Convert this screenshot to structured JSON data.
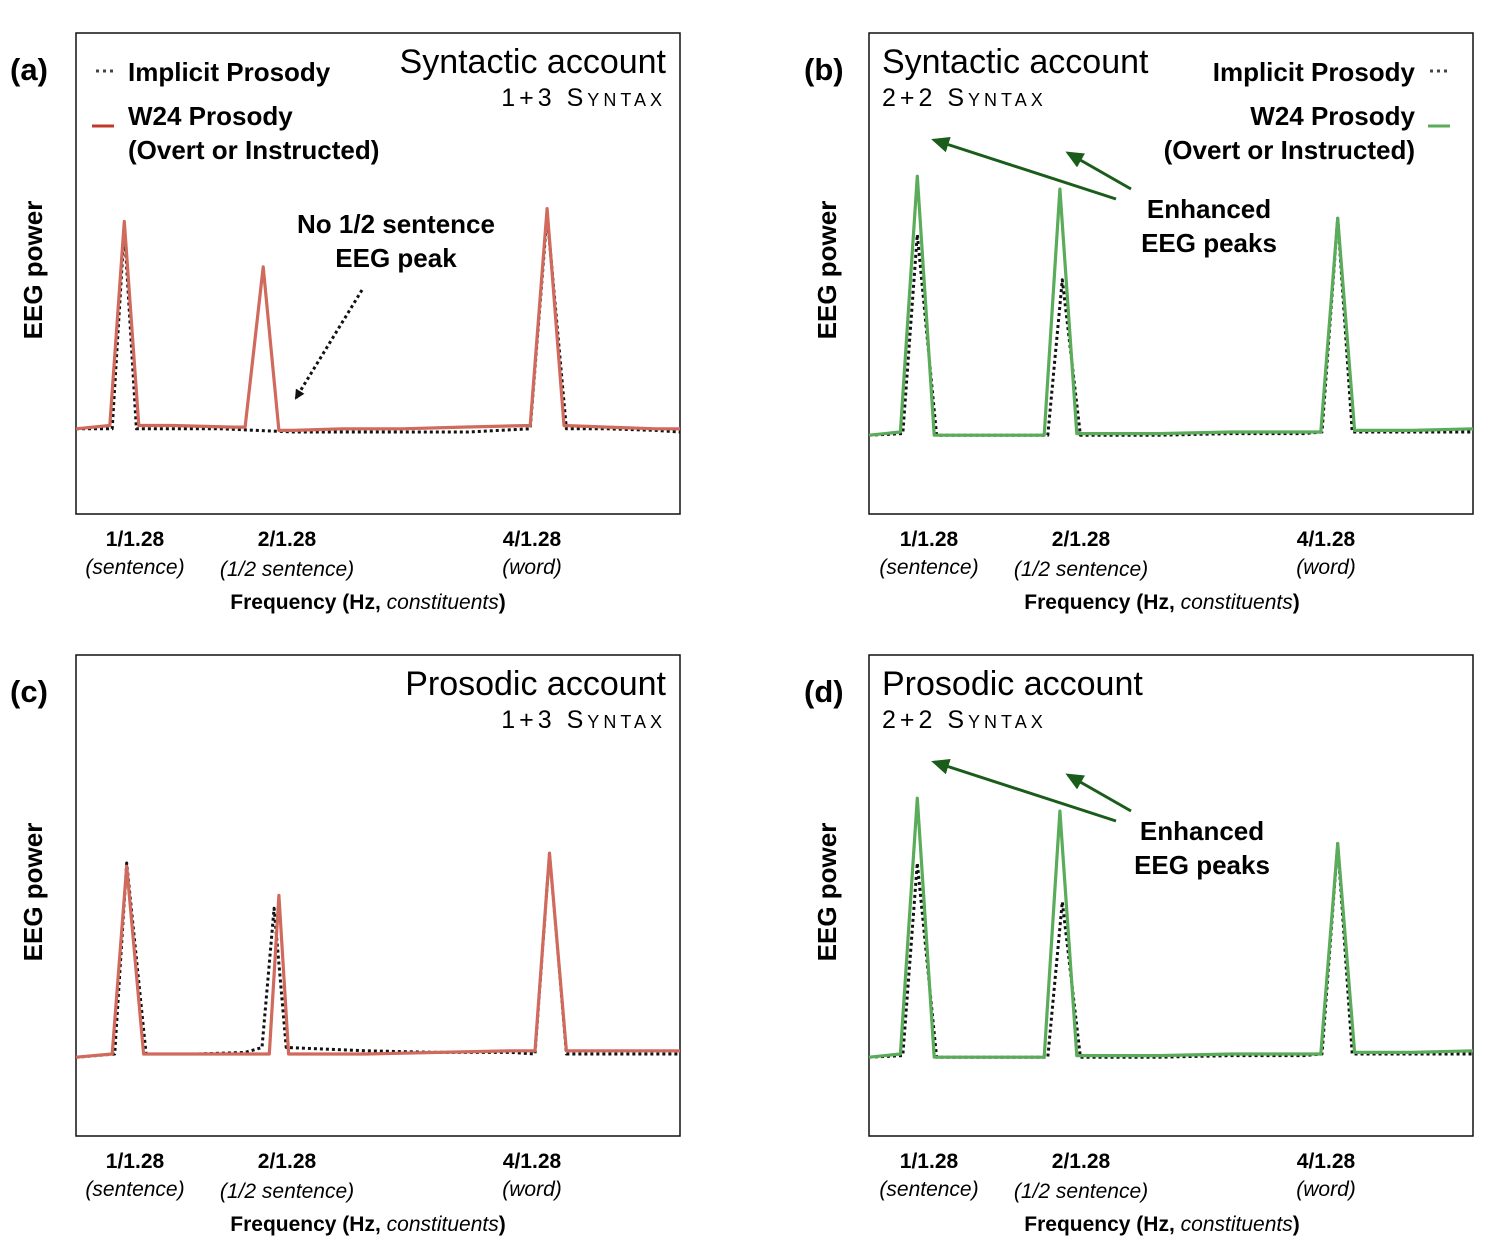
{
  "chart_data": [
    {
      "panel": "(a)",
      "type": "line",
      "title": "Syntactic account",
      "subtitle": "1+3 Syntax",
      "ylabel": "EEG power",
      "xlabel": {
        "main": "Frequency (Hz, ",
        "italic": "constituents",
        "close": ")"
      },
      "ticks": [
        {
          "main": "1/1.28",
          "sub": "(sentence)"
        },
        {
          "main": "2/1.28",
          "sub": "(1/2 sentence)"
        },
        {
          "main": "4/1.28",
          "sub": "(word)"
        }
      ],
      "legend": {
        "implicit": "Implicit Prosody",
        "w24_line1": "W24 Prosody",
        "w24_line2": "(Overt or Instructed)"
      },
      "annotation": {
        "line1": "No 1/2 sentence",
        "line2": "EEG peak"
      },
      "colors": {
        "w24": "#d06a5c",
        "implicit": "#111111",
        "arrow": "#111111"
      },
      "xlim": [
        0,
        5
      ],
      "ylim": [
        0,
        1.05
      ],
      "series": [
        {
          "name": "Implicit Prosody",
          "style": "dotted",
          "x": [
            0.0,
            0.3,
            0.4,
            0.5,
            0.8,
            1.2,
            1.5,
            1.8,
            2.2,
            2.7,
            3.0,
            3.25,
            3.5,
            3.76,
            3.9,
            4.06,
            4.4,
            4.8,
            5.0
          ],
          "y": [
            0.22,
            0.22,
            0.84,
            0.22,
            0.22,
            0.22,
            0.215,
            0.21,
            0.21,
            0.21,
            0.21,
            0.21,
            0.215,
            0.22,
            0.88,
            0.22,
            0.22,
            0.215,
            0.21
          ]
        },
        {
          "name": "W24 Prosody",
          "style": "solid",
          "x": [
            0.0,
            0.28,
            0.4,
            0.52,
            0.8,
            1.3,
            1.4,
            1.55,
            1.68,
            1.8,
            2.2,
            2.7,
            3.2,
            3.76,
            3.9,
            4.04,
            4.4,
            4.8,
            5.0
          ],
          "y": [
            0.22,
            0.23,
            0.86,
            0.23,
            0.23,
            0.225,
            0.225,
            0.72,
            0.215,
            0.215,
            0.22,
            0.22,
            0.225,
            0.23,
            0.9,
            0.23,
            0.225,
            0.22,
            0.22
          ]
        }
      ]
    },
    {
      "panel": "(b)",
      "type": "line",
      "title": "Syntactic account",
      "subtitle": "2+2 Syntax",
      "ylabel": "EEG power",
      "xlabel": {
        "main": "Frequency (Hz, ",
        "italic": "constituents",
        "close": ")"
      },
      "ticks": [
        {
          "main": "1/1.28",
          "sub": "(sentence)"
        },
        {
          "main": "2/1.28",
          "sub": "(1/2 sentence)"
        },
        {
          "main": "4/1.28",
          "sub": "(word)"
        }
      ],
      "legend": {
        "implicit": "Implicit Prosody",
        "w24_line1": "W24 Prosody",
        "w24_line2": "(Overt or Instructed)"
      },
      "annotation": {
        "line1": "Enhanced",
        "line2": "EEG peaks"
      },
      "colors": {
        "w24": "#5aab5a",
        "implicit": "#111111",
        "arrow": "#1a5c1a"
      },
      "xlim": [
        0,
        5
      ],
      "ylim": [
        0,
        1.05
      ],
      "series": [
        {
          "name": "Implicit Prosody",
          "style": "dotted",
          "x": [
            0.0,
            0.28,
            0.4,
            0.56,
            1.0,
            1.4,
            1.48,
            1.6,
            1.75,
            2.4,
            3.0,
            3.6,
            3.75,
            3.88,
            4.0,
            4.5,
            5.0
          ],
          "y": [
            0.2,
            0.205,
            0.82,
            0.2,
            0.2,
            0.2,
            0.2,
            0.68,
            0.2,
            0.2,
            0.205,
            0.205,
            0.21,
            0.87,
            0.21,
            0.21,
            0.21
          ]
        },
        {
          "name": "W24 Prosody",
          "style": "solid",
          "x": [
            0.0,
            0.26,
            0.4,
            0.54,
            1.0,
            1.45,
            1.58,
            1.72,
            2.4,
            3.0,
            3.6,
            3.74,
            3.88,
            4.02,
            4.5,
            5.0
          ],
          "y": [
            0.2,
            0.21,
            1.0,
            0.2,
            0.2,
            0.2,
            0.96,
            0.205,
            0.205,
            0.21,
            0.21,
            0.21,
            0.87,
            0.215,
            0.215,
            0.22
          ]
        }
      ]
    },
    {
      "panel": "(c)",
      "type": "line",
      "title": "Prosodic account",
      "subtitle": "1+3 Syntax",
      "ylabel": "EEG power",
      "xlabel": {
        "main": "Frequency (Hz, ",
        "italic": "constituents",
        "close": ")"
      },
      "ticks": [
        {
          "main": "1/1.28",
          "sub": "(sentence)"
        },
        {
          "main": "2/1.28",
          "sub": "(1/2 sentence)"
        },
        {
          "main": "4/1.28",
          "sub": "(word)"
        }
      ],
      "colors": {
        "w24": "#d06a5c",
        "implicit": "#111111"
      },
      "xlim": [
        0,
        5
      ],
      "ylim": [
        0,
        1.05
      ],
      "series": [
        {
          "name": "Implicit Prosody",
          "style": "dotted",
          "x": [
            0.0,
            0.32,
            0.42,
            0.58,
            1.0,
            1.4,
            1.54,
            1.64,
            1.74,
            2.4,
            3.0,
            3.6,
            3.8,
            3.92,
            4.06,
            4.5,
            5.0
          ],
          "y": [
            0.2,
            0.21,
            0.8,
            0.21,
            0.21,
            0.215,
            0.23,
            0.66,
            0.23,
            0.22,
            0.215,
            0.215,
            0.21,
            0.83,
            0.21,
            0.21,
            0.21
          ]
        },
        {
          "name": "W24 Prosody",
          "style": "solid",
          "x": [
            0.0,
            0.3,
            0.42,
            0.56,
            1.0,
            1.45,
            1.6,
            1.68,
            1.76,
            2.4,
            3.0,
            3.6,
            3.8,
            3.92,
            4.06,
            4.5,
            5.0
          ],
          "y": [
            0.2,
            0.21,
            0.79,
            0.21,
            0.21,
            0.21,
            0.21,
            0.7,
            0.21,
            0.21,
            0.215,
            0.22,
            0.22,
            0.83,
            0.22,
            0.22,
            0.22
          ]
        }
      ]
    },
    {
      "panel": "(d)",
      "type": "line",
      "title": "Prosodic account",
      "subtitle": "2+2 Syntax",
      "ylabel": "EEG power",
      "xlabel": {
        "main": "Frequency (Hz, ",
        "italic": "constituents",
        "close": ")"
      },
      "ticks": [
        {
          "main": "1/1.28",
          "sub": "(sentence)"
        },
        {
          "main": "2/1.28",
          "sub": "(1/2 sentence)"
        },
        {
          "main": "4/1.28",
          "sub": "(word)"
        }
      ],
      "annotation": {
        "line1": "Enhanced",
        "line2": "EEG peaks"
      },
      "colors": {
        "w24": "#5aab5a",
        "implicit": "#111111",
        "arrow": "#1a5c1a"
      },
      "xlim": [
        0,
        5
      ],
      "ylim": [
        0,
        1.05
      ],
      "series": [
        {
          "name": "Implicit Prosody",
          "style": "dotted",
          "x": [
            0.0,
            0.28,
            0.4,
            0.56,
            1.0,
            1.4,
            1.48,
            1.6,
            1.75,
            2.4,
            3.0,
            3.6,
            3.75,
            3.88,
            4.0,
            4.5,
            5.0
          ],
          "y": [
            0.2,
            0.205,
            0.8,
            0.2,
            0.2,
            0.2,
            0.2,
            0.68,
            0.2,
            0.2,
            0.205,
            0.205,
            0.21,
            0.86,
            0.21,
            0.21,
            0.21
          ]
        },
        {
          "name": "W24 Prosody",
          "style": "solid",
          "x": [
            0.0,
            0.26,
            0.4,
            0.54,
            1.0,
            1.45,
            1.58,
            1.72,
            2.4,
            3.0,
            3.6,
            3.74,
            3.88,
            4.02,
            4.5,
            5.0
          ],
          "y": [
            0.2,
            0.21,
            1.0,
            0.2,
            0.2,
            0.2,
            0.96,
            0.205,
            0.205,
            0.21,
            0.21,
            0.21,
            0.86,
            0.215,
            0.215,
            0.22
          ]
        }
      ]
    }
  ]
}
